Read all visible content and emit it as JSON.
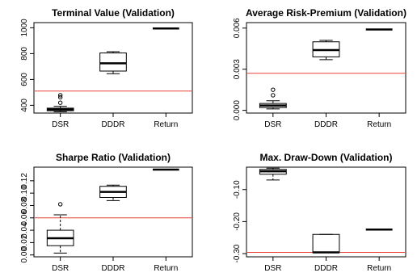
{
  "chart_data": [
    {
      "type": "boxplot",
      "title": "Terminal Value (Validation)",
      "categories": [
        "DSR",
        "DDDR",
        "Return"
      ],
      "ylim": [
        340,
        1040
      ],
      "yticks": [
        400,
        600,
        800,
        1000
      ],
      "reference_line": 510,
      "boxes": [
        {
          "min": 350,
          "q1": 358,
          "median": 368,
          "q3": 378,
          "max": 392,
          "outliers": [
            420,
            462,
            478
          ]
        },
        {
          "min": 645,
          "q1": 665,
          "median": 725,
          "q3": 805,
          "max": 815,
          "outliers": []
        },
        {
          "min": 995,
          "q1": 995,
          "median": 995,
          "q3": 995,
          "max": 995,
          "outliers": []
        }
      ]
    },
    {
      "type": "boxplot",
      "title": "Average Risk-Premium (Validation)",
      "categories": [
        "DSR",
        "DDDR",
        "Return"
      ],
      "ylim": [
        -0.0002,
        0.0064
      ],
      "yticks": [
        0.0,
        0.003,
        0.006
      ],
      "ytick_labels": [
        "0.000",
        "0.003",
        "0.006"
      ],
      "reference_line": 0.0027,
      "boxes": [
        {
          "min": 0.0001,
          "q1": 0.0002,
          "median": 0.00035,
          "q3": 0.0005,
          "max": 0.0007,
          "outliers": [
            0.0011,
            0.0015
          ]
        },
        {
          "min": 0.0037,
          "q1": 0.0039,
          "median": 0.0044,
          "q3": 0.005,
          "max": 0.0051,
          "outliers": []
        },
        {
          "min": 0.0059,
          "q1": 0.0059,
          "median": 0.0059,
          "q3": 0.0059,
          "max": 0.0059,
          "outliers": []
        }
      ]
    },
    {
      "type": "boxplot",
      "title": "Sharpe Ratio (Validation)",
      "categories": [
        "DSR",
        "DDDR",
        "Return"
      ],
      "ylim": [
        -0.003,
        0.142
      ],
      "yticks": [
        0.0,
        0.02,
        0.04,
        0.06,
        0.08,
        0.1,
        0.12
      ],
      "ytick_labels": [
        "0.00",
        "0.02",
        "0.04",
        "0.06",
        "0.08",
        "0.10",
        "0.12"
      ],
      "reference_line": 0.06,
      "boxes": [
        {
          "min": 0.003,
          "q1": 0.015,
          "median": 0.027,
          "q3": 0.04,
          "max": 0.065,
          "outliers": [
            0.082
          ]
        },
        {
          "min": 0.088,
          "q1": 0.093,
          "median": 0.102,
          "q3": 0.111,
          "max": 0.113,
          "outliers": []
        },
        {
          "min": 0.138,
          "q1": 0.138,
          "median": 0.138,
          "q3": 0.138,
          "max": 0.138,
          "outliers": []
        }
      ]
    },
    {
      "type": "boxplot",
      "title": "Max. Draw-Down (Validation)",
      "categories": [
        "DSR",
        "DDDR",
        "Return"
      ],
      "ylim": [
        -0.31,
        -0.03
      ],
      "yticks": [
        -0.3,
        -0.2,
        -0.1
      ],
      "ytick_labels": [
        "-0.30",
        "-0.20",
        "-0.10"
      ],
      "reference_line": -0.296,
      "boxes": [
        {
          "min": -0.07,
          "q1": -0.052,
          "median": -0.043,
          "q3": -0.037,
          "max": -0.033,
          "outliers": []
        },
        {
          "min": -0.297,
          "q1": -0.297,
          "median": -0.296,
          "q3": -0.24,
          "max": -0.24,
          "outliers": []
        },
        {
          "min": -0.225,
          "q1": -0.225,
          "median": -0.225,
          "q3": -0.225,
          "max": -0.225,
          "outliers": []
        }
      ]
    }
  ]
}
